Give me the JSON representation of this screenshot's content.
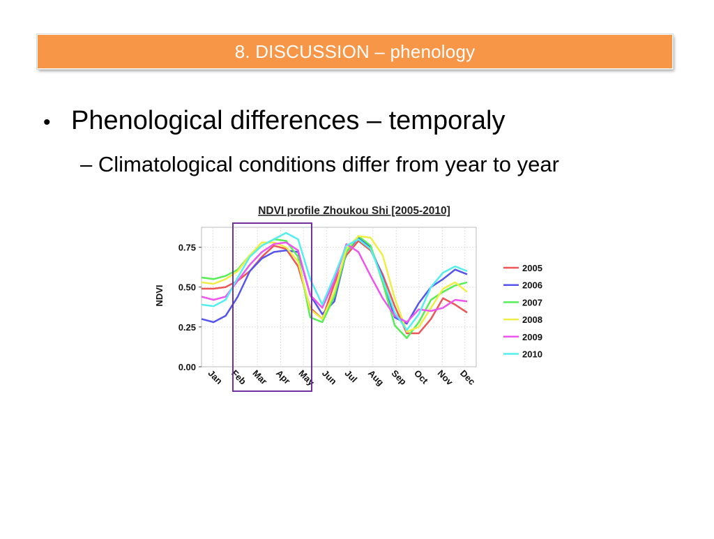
{
  "slide": {
    "title": "8. DISCUSSION – phenology",
    "bullet_main": "Phenological differences – temporaly",
    "bullet_sub": "– Climatological conditions differ from year to year"
  },
  "chart_data": {
    "type": "line",
    "title": "NDVI profile Zhoukou Shi [2005-2010]",
    "ylabel": "NDVI",
    "xlabel": "",
    "ylim": [
      0,
      0.875
    ],
    "yticks": [
      0.0,
      0.25,
      0.5,
      0.75
    ],
    "ytick_labels": [
      "0.00",
      "0.25",
      "0.50",
      "0.75"
    ],
    "month_labels": [
      "Jan",
      "Feb",
      "Mar",
      "Apr",
      "May",
      "Jun",
      "Jul",
      "Aug",
      "Sep",
      "Oct",
      "Nov",
      "Dec"
    ],
    "x": [
      1,
      17,
      33,
      49,
      65,
      81,
      97,
      113,
      129,
      145,
      161,
      177,
      193,
      209,
      225,
      241,
      257,
      273,
      289,
      305,
      321,
      337,
      353
    ],
    "grid": true,
    "legend_position": "right",
    "highlight_box": {
      "start_month": "Feb",
      "end_month": "May",
      "color": "#7030a0"
    },
    "series": [
      {
        "name": "2005",
        "color": "#ee5555",
        "values": [
          0.49,
          0.49,
          0.5,
          0.54,
          0.6,
          0.69,
          0.76,
          0.74,
          0.63,
          0.37,
          0.3,
          0.52,
          0.7,
          0.79,
          0.73,
          0.58,
          0.38,
          0.21,
          0.21,
          0.3,
          0.43,
          0.39,
          0.34
        ]
      },
      {
        "name": "2006",
        "color": "#5555ee",
        "values": [
          0.3,
          0.28,
          0.32,
          0.44,
          0.6,
          0.68,
          0.72,
          0.73,
          0.72,
          0.45,
          0.33,
          0.41,
          0.72,
          0.81,
          0.75,
          0.56,
          0.31,
          0.27,
          0.4,
          0.5,
          0.55,
          0.61,
          0.58
        ]
      },
      {
        "name": "2007",
        "color": "#55ee55",
        "values": [
          0.56,
          0.55,
          0.57,
          0.61,
          0.7,
          0.76,
          0.8,
          0.79,
          0.69,
          0.31,
          0.28,
          0.44,
          0.72,
          0.82,
          0.76,
          0.53,
          0.26,
          0.18,
          0.28,
          0.42,
          0.47,
          0.51,
          0.53
        ]
      },
      {
        "name": "2008",
        "color": "#eeee44",
        "values": [
          0.53,
          0.52,
          0.55,
          0.6,
          0.7,
          0.78,
          0.78,
          0.75,
          0.66,
          0.36,
          0.3,
          0.47,
          0.74,
          0.82,
          0.81,
          0.7,
          0.43,
          0.22,
          0.25,
          0.37,
          0.49,
          0.53,
          0.47
        ]
      },
      {
        "name": "2009",
        "color": "#ee55ee",
        "values": [
          0.44,
          0.42,
          0.44,
          0.54,
          0.64,
          0.72,
          0.77,
          0.78,
          0.73,
          0.45,
          0.37,
          0.54,
          0.77,
          0.72,
          0.57,
          0.43,
          0.32,
          0.28,
          0.36,
          0.35,
          0.37,
          0.42,
          0.41
        ]
      },
      {
        "name": "2010",
        "color": "#55eeee",
        "values": [
          0.39,
          0.38,
          0.42,
          0.56,
          0.69,
          0.76,
          0.8,
          0.84,
          0.8,
          0.55,
          0.39,
          0.57,
          0.76,
          0.8,
          0.74,
          0.55,
          0.34,
          0.23,
          0.33,
          0.5,
          0.59,
          0.63,
          0.6
        ]
      }
    ]
  }
}
